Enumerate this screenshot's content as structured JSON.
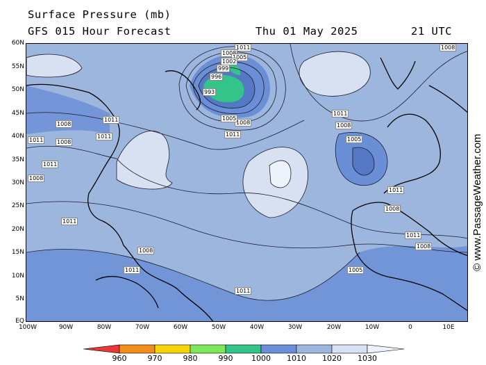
{
  "header": {
    "title": "Surface Pressure (mb)",
    "model_line": "GFS 015 Hour Forecast",
    "date": "Thu 01 May 2025",
    "time": "21 UTC"
  },
  "credit": "© www.PassageWeather.com",
  "lat_labels": [
    "60N",
    "55N",
    "50N",
    "45N",
    "40N",
    "35N",
    "30N",
    "25N",
    "20N",
    "15N",
    "10N",
    "5N",
    "EQ"
  ],
  "lon_labels": [
    "100W",
    "90W",
    "80W",
    "70W",
    "60W",
    "50W",
    "40W",
    "30W",
    "20W",
    "10W",
    "0",
    "10E"
  ],
  "colorbar": {
    "labels": [
      "960",
      "970",
      "980",
      "990",
      "1000",
      "1010",
      "1020",
      "1030"
    ],
    "colors": [
      "#e8383c",
      "#f28c1a",
      "#f5d50a",
      "#7ee85c",
      "#33c48a",
      "#6a8fd6",
      "#9db6de",
      "#d7e1f2"
    ]
  },
  "isobar_labels": [
    {
      "text": "1011"
    },
    {
      "text": "1008"
    },
    {
      "text": "1005"
    },
    {
      "text": "1002"
    },
    {
      "text": "999"
    },
    {
      "text": "996"
    },
    {
      "text": "993"
    },
    {
      "text": "1011"
    },
    {
      "text": "1008"
    },
    {
      "text": "1005"
    },
    {
      "text": "1011"
    },
    {
      "text": "1008"
    },
    {
      "text": "1005"
    },
    {
      "text": "1011"
    },
    {
      "text": "1008"
    },
    {
      "text": "1011"
    },
    {
      "text": "1011"
    },
    {
      "text": "1008"
    },
    {
      "text": "1011"
    },
    {
      "text": "1008"
    },
    {
      "text": "1011"
    },
    {
      "text": "1008"
    },
    {
      "text": "1011"
    },
    {
      "text": "1008"
    },
    {
      "text": "1005"
    },
    {
      "text": "1011"
    },
    {
      "text": "1008"
    },
    {
      "text": "1011"
    },
    {
      "text": "1011"
    },
    {
      "text": "1008"
    }
  ]
}
